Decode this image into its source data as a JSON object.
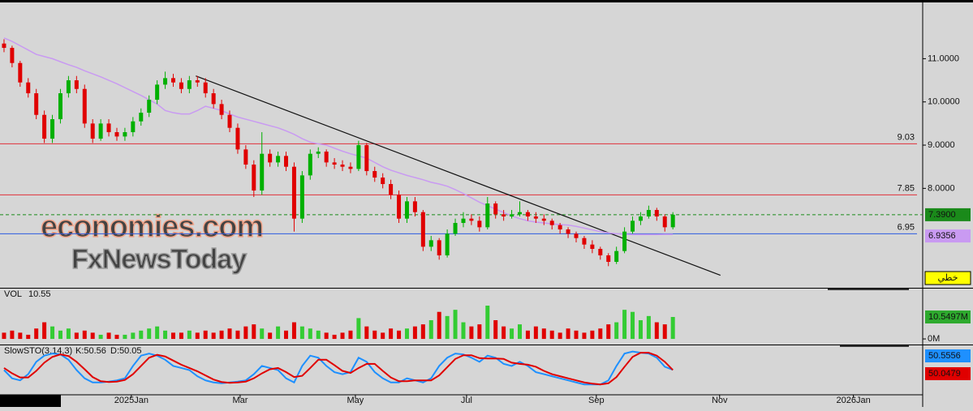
{
  "chart_data": [
    {
      "type": "candlestick",
      "xlim": [
        -0.5,
        114
      ],
      "ylim": [
        5.7,
        12.32
      ],
      "yticks": [
        {
          "value": 11,
          "label": "11.0000"
        },
        {
          "value": 10,
          "label": "10.0000"
        },
        {
          "value": 9,
          "label": "9.0000"
        },
        {
          "value": 8,
          "label": "8.0000"
        }
      ],
      "up_color": "#00b000",
      "down_color": "#e00000",
      "open": [
        11.35,
        11.25,
        10.9,
        10.45,
        10.2,
        9.7,
        9.15,
        9.6,
        10.2,
        10.5,
        10.3,
        9.5,
        9.15,
        9.5,
        9.3,
        9.2,
        9.3,
        9.55,
        9.75,
        10.05,
        10.4,
        10.55,
        10.45,
        10.3,
        10.5,
        10.45,
        10.2,
        9.95,
        9.7,
        9.4,
        8.9,
        8.55,
        7.95,
        8.8,
        8.6,
        8.75,
        8.5,
        7.3,
        8.3,
        8.8,
        8.85,
        8.6,
        8.55,
        8.5,
        8.45,
        9.0,
        8.4,
        8.25,
        8.1,
        7.85,
        7.3,
        7.7,
        7.45,
        6.65,
        6.8,
        6.45,
        6.95,
        7.2,
        7.3,
        7.25,
        7.1,
        7.65,
        7.4,
        7.35,
        7.4,
        7.45,
        7.35,
        7.3,
        7.25,
        7.15,
        7.05,
        6.95,
        6.85,
        6.7,
        6.6,
        6.45,
        6.3,
        6.55,
        7.0,
        7.25,
        7.35,
        7.5,
        7.35,
        7.1
      ],
      "high": [
        11.45,
        11.3,
        10.95,
        10.55,
        10.3,
        9.8,
        9.7,
        10.3,
        10.6,
        10.6,
        10.4,
        9.6,
        9.6,
        9.6,
        9.4,
        9.4,
        9.65,
        9.85,
        10.15,
        10.5,
        10.7,
        10.65,
        10.55,
        10.6,
        10.6,
        10.55,
        10.3,
        10.05,
        9.8,
        9.5,
        9.0,
        8.65,
        9.3,
        8.9,
        8.85,
        8.85,
        8.6,
        8.4,
        8.9,
        8.95,
        8.9,
        8.7,
        8.65,
        8.6,
        9.1,
        9.05,
        8.5,
        8.35,
        8.2,
        7.95,
        7.8,
        7.8,
        7.5,
        6.9,
        6.85,
        7.05,
        7.3,
        7.45,
        7.4,
        7.35,
        7.8,
        7.7,
        7.5,
        7.5,
        7.7,
        7.5,
        7.45,
        7.4,
        7.3,
        7.2,
        7.1,
        7.0,
        6.9,
        6.8,
        6.65,
        6.5,
        6.65,
        7.1,
        7.35,
        7.45,
        7.6,
        7.55,
        7.4,
        7.45
      ],
      "low": [
        11.15,
        10.8,
        10.35,
        10.1,
        9.6,
        9.05,
        9.05,
        9.5,
        10.1,
        10.2,
        9.4,
        9.05,
        9.1,
        9.2,
        9.1,
        9.1,
        9.2,
        9.45,
        9.65,
        9.95,
        10.3,
        10.35,
        10.2,
        10.2,
        10.35,
        10.1,
        9.85,
        9.6,
        9.3,
        8.8,
        8.45,
        7.8,
        7.85,
        8.5,
        8.5,
        8.4,
        7.0,
        7.2,
        8.2,
        8.7,
        8.5,
        8.45,
        8.4,
        8.35,
        8.4,
        8.3,
        8.15,
        8.0,
        7.75,
        7.2,
        7.2,
        7.35,
        6.55,
        6.55,
        6.35,
        6.4,
        6.9,
        7.1,
        7.15,
        7.0,
        7.05,
        7.3,
        7.25,
        7.3,
        7.35,
        7.25,
        7.2,
        7.15,
        7.05,
        6.95,
        6.85,
        6.75,
        6.6,
        6.5,
        6.35,
        6.2,
        6.25,
        6.5,
        6.95,
        7.15,
        7.3,
        7.25,
        7.0,
        7.05
      ],
      "close": [
        11.25,
        10.9,
        10.45,
        10.2,
        9.7,
        9.15,
        9.6,
        10.2,
        10.5,
        10.3,
        9.5,
        9.15,
        9.5,
        9.3,
        9.2,
        9.3,
        9.55,
        9.75,
        10.05,
        10.4,
        10.55,
        10.45,
        10.3,
        10.5,
        10.45,
        10.2,
        9.95,
        9.7,
        9.4,
        8.9,
        8.55,
        7.95,
        8.8,
        8.6,
        8.75,
        8.5,
        7.3,
        8.3,
        8.8,
        8.85,
        8.6,
        8.55,
        8.5,
        8.45,
        9.0,
        8.4,
        8.25,
        8.1,
        7.85,
        7.3,
        7.7,
        7.45,
        6.65,
        6.8,
        6.45,
        6.95,
        7.2,
        7.3,
        7.25,
        7.1,
        7.65,
        7.4,
        7.35,
        7.4,
        7.45,
        7.35,
        7.3,
        7.25,
        7.15,
        7.05,
        6.95,
        6.85,
        6.7,
        6.6,
        6.45,
        6.3,
        6.55,
        7.0,
        7.25,
        7.35,
        7.5,
        7.35,
        7.1,
        7.39
      ],
      "ma": {
        "color": "#c99af2",
        "label": "6.9356",
        "values": [
          11.48,
          11.4,
          11.3,
          11.2,
          11.1,
          11.05,
          11.0,
          10.93,
          10.86,
          10.8,
          10.72,
          10.65,
          10.58,
          10.5,
          10.42,
          10.33,
          10.24,
          10.15,
          10.05,
          9.95,
          9.8,
          9.75,
          9.72,
          9.72,
          9.8,
          9.9,
          9.85,
          9.8,
          9.72,
          9.65,
          9.6,
          9.55,
          9.5,
          9.45,
          9.4,
          9.33,
          9.25,
          9.15,
          9.07,
          9.03,
          9.0,
          8.93,
          8.86,
          8.8,
          8.75,
          8.7,
          8.6,
          8.5,
          8.42,
          8.36,
          8.3,
          8.25,
          8.2,
          8.14,
          8.1,
          8.05,
          7.97,
          7.88,
          7.78,
          7.68,
          7.6,
          7.52,
          7.44,
          7.36,
          7.3,
          7.25,
          7.22,
          7.2,
          7.18,
          7.16,
          7.15,
          7.12,
          7.08,
          7.04,
          7.0,
          6.97,
          6.95,
          6.94,
          6.93,
          6.93,
          6.93,
          6.93,
          6.935,
          6.9356
        ]
      },
      "levels": [
        {
          "value": 9.03,
          "color": "#e0303a"
        },
        {
          "value": 7.85,
          "color": "#e0303a"
        },
        {
          "value": 6.95,
          "color": "#2c5be0"
        }
      ],
      "last_price": {
        "value": 7.39,
        "label": "7.3900",
        "color": "#1a8a1a"
      },
      "trendline": {
        "x": [
          23.8,
          88.9
        ],
        "y": [
          10.6,
          5.99
        ]
      },
      "watermark": [
        "economies.com",
        "FxNewsToday"
      ],
      "button": "خطي"
    },
    {
      "type": "bar",
      "title": "VOL",
      "legend_value": "10.55",
      "last_label": "10.5497M",
      "ylim": [
        -2.7,
        24.2
      ],
      "yticks": [
        {
          "value": 0,
          "label": "0M"
        }
      ],
      "values": [
        3,
        4,
        3,
        2,
        5,
        8,
        6,
        4,
        5,
        3,
        4,
        3,
        2,
        3,
        2,
        2,
        3,
        4,
        5,
        6,
        4,
        3,
        3,
        4,
        3,
        4,
        3,
        4,
        5,
        4,
        6,
        7,
        5,
        3,
        6,
        4,
        8,
        6,
        5,
        4,
        3,
        2,
        3,
        4,
        10,
        6,
        4,
        3,
        5,
        4,
        5,
        6,
        7,
        9,
        13,
        11,
        14,
        8,
        6,
        7,
        16,
        9,
        6,
        5,
        7,
        4,
        6,
        5,
        4,
        3,
        5,
        4,
        3,
        4,
        5,
        7,
        8,
        14,
        13,
        9,
        11,
        8,
        7,
        10.5497
      ]
    },
    {
      "type": "line",
      "title": "SlowSTO(3,14,3)",
      "ylim": [
        -10,
        110
      ],
      "xticks": [
        {
          "value": 15.8,
          "label": "2025Jan"
        },
        {
          "value": 29.3,
          "label": "Mar"
        },
        {
          "value": 43.6,
          "label": "May"
        },
        {
          "value": 57.4,
          "label": "Jul"
        },
        {
          "value": 73.5,
          "label": "Sep"
        },
        {
          "value": 88.8,
          "label": "Nov"
        },
        {
          "value": 105.4,
          "label": "2026Jan"
        }
      ],
      "series": [
        {
          "label": "K:50.56",
          "last_label": "50.5556",
          "color": "#1e90ff",
          "values": [
            50,
            30,
            25,
            40,
            70,
            85,
            90,
            88,
            75,
            50,
            30,
            20,
            20,
            22,
            25,
            30,
            60,
            85,
            90,
            85,
            75,
            60,
            55,
            50,
            35,
            25,
            20,
            18,
            20,
            22,
            25,
            40,
            60,
            55,
            50,
            30,
            20,
            60,
            85,
            80,
            60,
            45,
            40,
            45,
            80,
            70,
            45,
            30,
            20,
            20,
            30,
            25,
            20,
            30,
            60,
            80,
            90,
            88,
            80,
            70,
            85,
            80,
            65,
            60,
            70,
            60,
            45,
            40,
            35,
            30,
            25,
            20,
            15,
            15,
            15,
            25,
            60,
            90,
            95,
            92,
            90,
            80,
            58,
            50.56
          ]
        },
        {
          "label": "D:50.05",
          "last_label": "50.0479",
          "color": "#e00000",
          "values": [
            55,
            42,
            32,
            32,
            48,
            68,
            82,
            88,
            84,
            70,
            52,
            33,
            23,
            21,
            22,
            26,
            40,
            60,
            80,
            87,
            83,
            73,
            63,
            55,
            47,
            37,
            27,
            21,
            19,
            20,
            22,
            30,
            42,
            52,
            55,
            45,
            33,
            36,
            55,
            75,
            75,
            62,
            48,
            43,
            55,
            65,
            65,
            48,
            32,
            23,
            23,
            25,
            25,
            25,
            37,
            57,
            77,
            86,
            86,
            79,
            78,
            78,
            77,
            68,
            65,
            63,
            58,
            48,
            40,
            35,
            30,
            25,
            20,
            17,
            15,
            18,
            33,
            58,
            82,
            92,
            92,
            85,
            70,
            50.05
          ]
        }
      ]
    }
  ]
}
